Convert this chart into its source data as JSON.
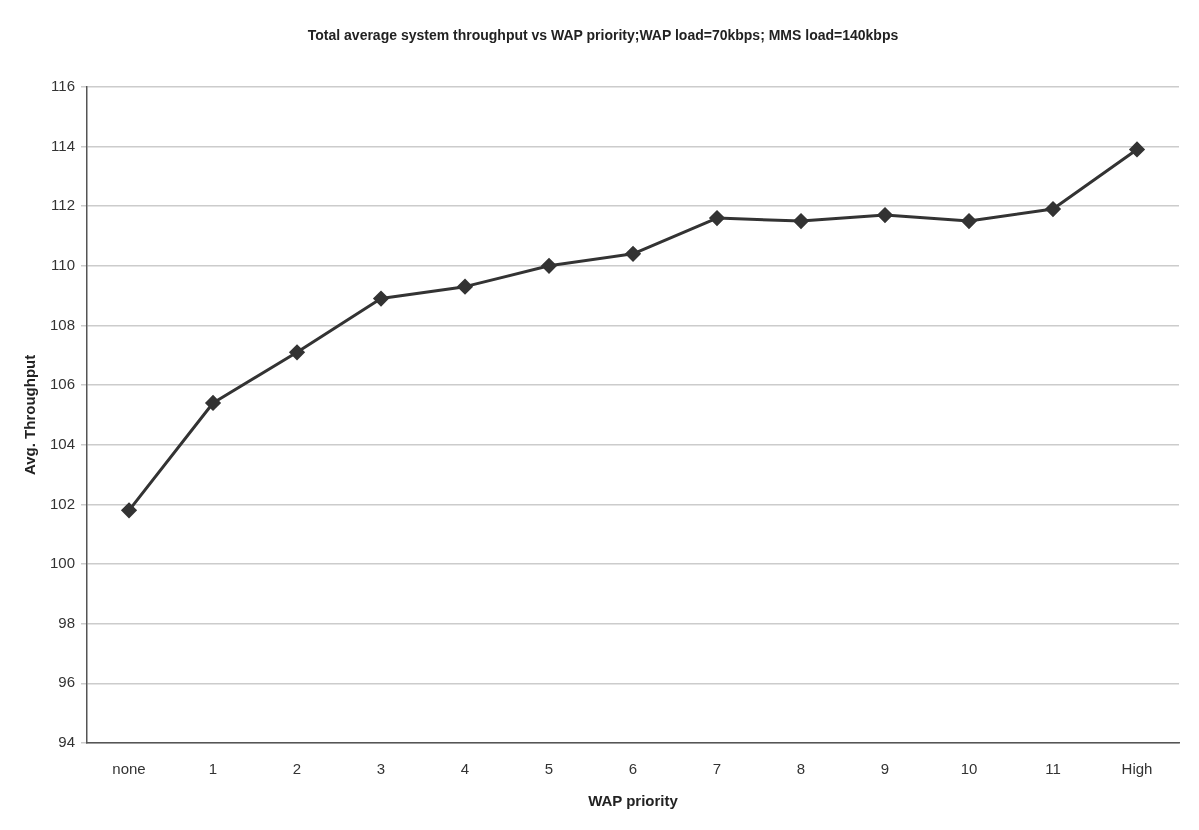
{
  "chart_data": {
    "type": "line",
    "title": "Total average system throughput vs WAP priority;WAP load=70kbps; MMS load=140kbps",
    "xlabel": "WAP priority",
    "ylabel": "Avg. Throughput",
    "categories": [
      "none",
      "1",
      "2",
      "3",
      "4",
      "5",
      "6",
      "7",
      "8",
      "9",
      "10",
      "11",
      "High"
    ],
    "series": [
      {
        "color": "#333333",
        "values": [
          101.8,
          105.4,
          107.1,
          108.9,
          109.3,
          110.0,
          110.4,
          111.6,
          111.5,
          111.7,
          111.5,
          111.9,
          113.9
        ]
      }
    ],
    "ylim": [
      94,
      116
    ],
    "yticks": [
      94,
      96,
      98,
      100,
      102,
      104,
      106,
      108,
      110,
      112,
      114,
      116
    ],
    "grid": "y",
    "legend": false,
    "marker": "diamond",
    "line_style": "solid"
  }
}
